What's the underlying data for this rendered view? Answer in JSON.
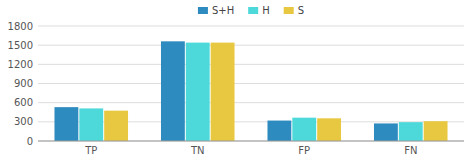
{
  "chart_data": {
    "type": "bar",
    "categories": [
      "TP",
      "TN",
      "FP",
      "FN"
    ],
    "series": [
      {
        "name": "S+H",
        "color": "#2e8bc0",
        "values": [
          530,
          1560,
          320,
          275
        ]
      },
      {
        "name": "H",
        "color": "#4dd9d9",
        "values": [
          510,
          1540,
          365,
          295
        ]
      },
      {
        "name": "S",
        "color": "#e8c840",
        "values": [
          475,
          1540,
          355,
          310
        ]
      }
    ],
    "ylim": [
      0,
      1800
    ],
    "yticks": [
      0,
      300,
      600,
      900,
      1200,
      1500,
      1800
    ],
    "grid": true,
    "legend": "top"
  }
}
